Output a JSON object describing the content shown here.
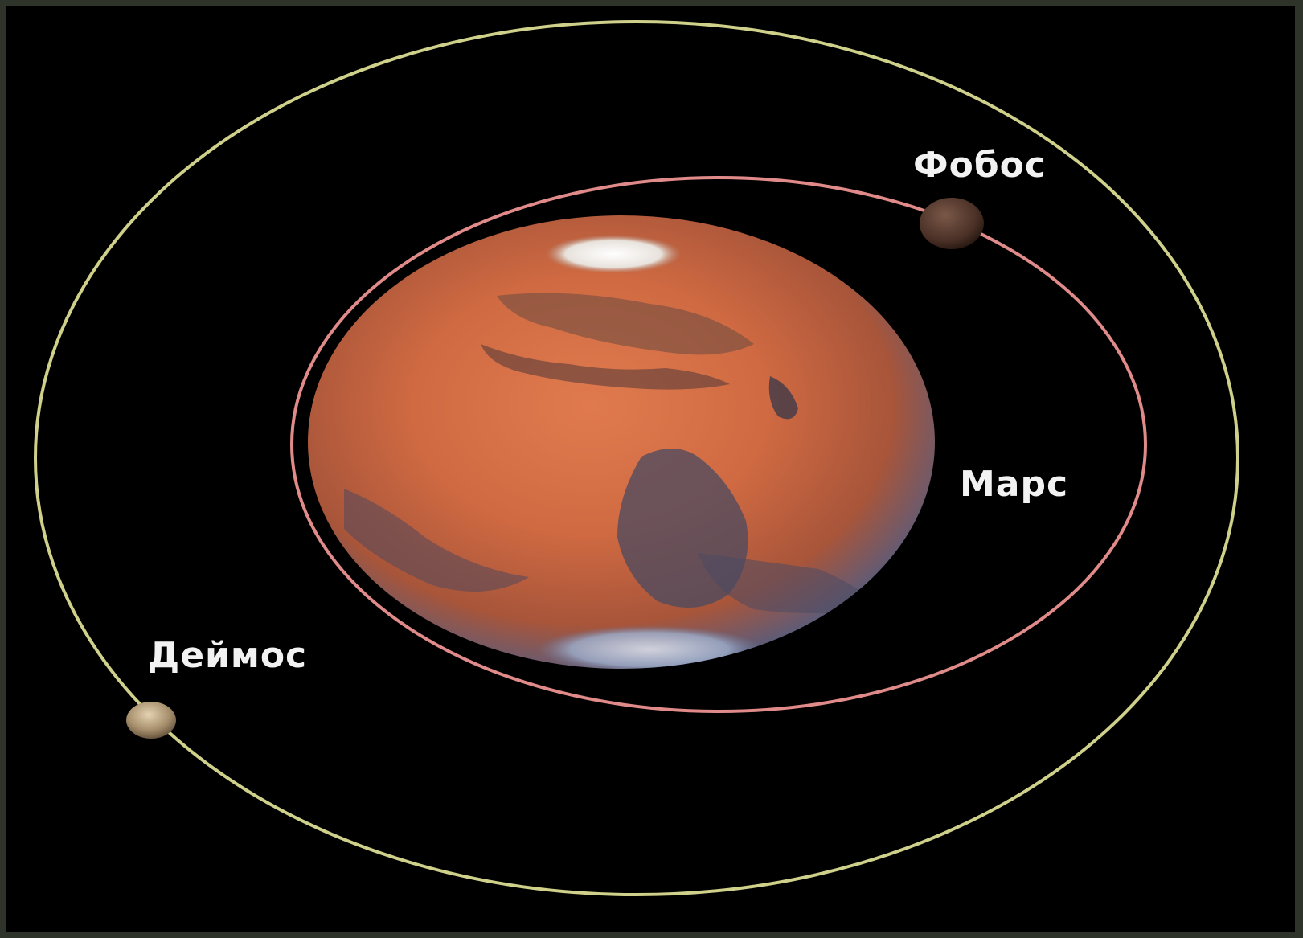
{
  "labels": {
    "phobos": "Фобос",
    "mars": "Марс",
    "deimos": "Деймос"
  },
  "colors": {
    "background": "#000000",
    "outer_orbit": "#cfd08a",
    "inner_orbit": "#e08a8a",
    "mars_surface": "#c8643f",
    "label_text": "#f2f2f2"
  }
}
